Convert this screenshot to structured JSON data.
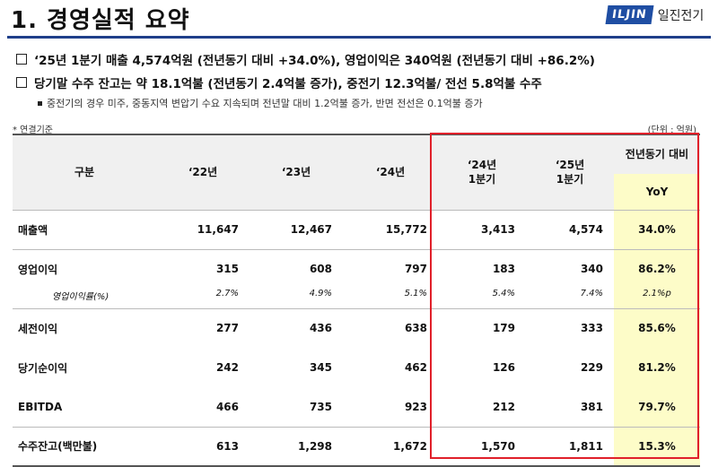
{
  "header": {
    "title": "1. 경영실적 요약",
    "logo_text": "ILJIN",
    "company_name": "일진전기"
  },
  "bullets": [
    "‘25년 1분기 매출 4,574억원 (전년동기 대비 +34.0%), 영업이익은 340억원 (전년동기 대비 +86.2%)",
    "당기말 수주 잔고는 약 18.1억불 (전년동기 2.4억불 증가), 중전기 12.3억불/ 전선 5.8억불 수주"
  ],
  "sub_bullet": "중전기의 경우 미주, 중동지역 변압기 수요 지속되며 전년말 대비 1.2억불 증가, 반면 전선은 0.1억불 증가",
  "notes": {
    "basis": "* 연결기준",
    "unit": "(단위 : 억원)"
  },
  "table": {
    "headers": {
      "category": "구분",
      "y22": "‘22년",
      "y23": "‘23년",
      "y24": "‘24년",
      "q24_line1": "‘24년",
      "q24_line2": "1분기",
      "q25_line1": "‘25년",
      "q25_line2": "1분기",
      "yoy_top": "전년동기 대비",
      "yoy_bottom": "YoY"
    },
    "rows": [
      {
        "label": "매출액",
        "y22": "11,647",
        "y23": "12,467",
        "y24": "15,772",
        "q24": "3,413",
        "q25": "4,574",
        "yoy": "34.0%"
      },
      {
        "label": "영업이익",
        "y22": "315",
        "y23": "608",
        "y24": "797",
        "q24": "183",
        "q25": "340",
        "yoy": "86.2%"
      },
      {
        "label": "영업이익률(%)",
        "y22": "2.7%",
        "y23": "4.9%",
        "y24": "5.1%",
        "q24": "5.4%",
        "q25": "7.4%",
        "yoy": "2.1%p"
      },
      {
        "label": "세전이익",
        "y22": "277",
        "y23": "436",
        "y24": "638",
        "q24": "179",
        "q25": "333",
        "yoy": "85.6%"
      },
      {
        "label": "당기순이익",
        "y22": "242",
        "y23": "345",
        "y24": "462",
        "q24": "126",
        "q25": "229",
        "yoy": "81.2%"
      },
      {
        "label": "EBITDA",
        "y22": "466",
        "y23": "735",
        "y24": "923",
        "q24": "212",
        "q25": "381",
        "yoy": "79.7%"
      },
      {
        "label": "수주잔고(백만불)",
        "y22": "613",
        "y23": "1,298",
        "y24": "1,672",
        "q24": "1,570",
        "q25": "1,811",
        "yoy": "15.3%"
      }
    ]
  },
  "colors": {
    "title_rule": "#1f3f8a",
    "highlight_border": "#e0202a",
    "yoy_fill": "#fdfcc8",
    "header_fill": "#f0f0f0",
    "logo_blue": "#1f4ea3"
  }
}
